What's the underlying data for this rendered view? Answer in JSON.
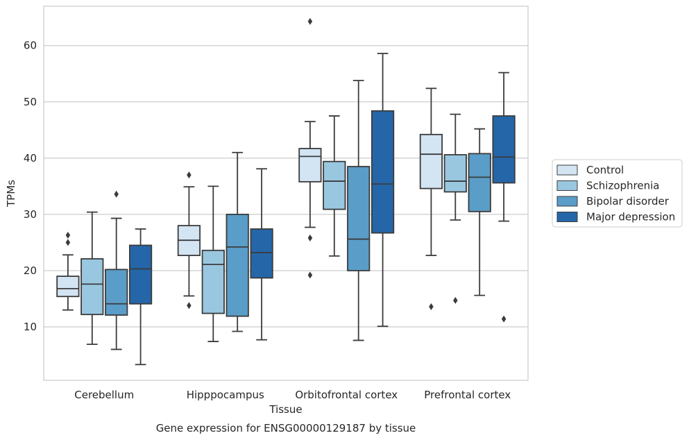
{
  "chart_data": {
    "type": "box",
    "caption": "Gene expression for ENSG00000129187 by tissue",
    "xlabel": "Tissue",
    "ylabel": "TPMs",
    "ylim": [
      0.5,
      67
    ],
    "yticks": [
      10,
      20,
      30,
      40,
      50,
      60
    ],
    "grid": "horizontal",
    "legend_position": "outside-right",
    "categories": [
      "Cerebellum",
      "Hipppocampus",
      "Orbitofrontal cortex",
      "Prefrontal cortex"
    ],
    "series": [
      {
        "name": "Control",
        "color": "#d3e4f3",
        "boxes": [
          {
            "whislo": 13.0,
            "q1": 15.4,
            "med": 16.8,
            "q3": 19.0,
            "whishi": 22.8,
            "fliers": [
              25.0,
              26.3
            ]
          },
          {
            "whislo": 15.5,
            "q1": 22.7,
            "med": 25.4,
            "q3": 28.0,
            "whishi": 34.9,
            "fliers": [
              13.8,
              37.0
            ]
          },
          {
            "whislo": 27.7,
            "q1": 35.8,
            "med": 40.3,
            "q3": 41.7,
            "whishi": 46.5,
            "fliers": [
              19.2,
              25.8,
              64.3
            ]
          },
          {
            "whislo": 22.7,
            "q1": 34.6,
            "med": 40.7,
            "q3": 44.2,
            "whishi": 52.4,
            "fliers": [
              13.6
            ]
          }
        ]
      },
      {
        "name": "Schizophrenia",
        "color": "#9ac7e0",
        "boxes": [
          {
            "whislo": 6.9,
            "q1": 12.2,
            "med": 17.6,
            "q3": 22.1,
            "whishi": 30.4,
            "fliers": []
          },
          {
            "whislo": 7.4,
            "q1": 12.4,
            "med": 21.1,
            "q3": 23.6,
            "whishi": 35.0,
            "fliers": []
          },
          {
            "whislo": 22.6,
            "q1": 30.9,
            "med": 35.9,
            "q3": 39.4,
            "whishi": 47.5,
            "fliers": []
          },
          {
            "whislo": 29.0,
            "q1": 34.0,
            "med": 35.9,
            "q3": 40.6,
            "whishi": 47.8,
            "fliers": [
              14.7
            ]
          }
        ]
      },
      {
        "name": "Bipolar disorder",
        "color": "#5a9dc8",
        "boxes": [
          {
            "whislo": 6.0,
            "q1": 12.1,
            "med": 14.1,
            "q3": 20.2,
            "whishi": 29.3,
            "fliers": [
              33.6
            ]
          },
          {
            "whislo": 9.2,
            "q1": 11.9,
            "med": 24.2,
            "q3": 30.0,
            "whishi": 41.0,
            "fliers": []
          },
          {
            "whislo": 7.6,
            "q1": 20.0,
            "med": 25.6,
            "q3": 38.5,
            "whishi": 53.8,
            "fliers": []
          },
          {
            "whislo": 15.6,
            "q1": 30.5,
            "med": 36.6,
            "q3": 40.8,
            "whishi": 45.2,
            "fliers": []
          }
        ]
      },
      {
        "name": "Major depression",
        "color": "#2566a9",
        "boxes": [
          {
            "whislo": 3.3,
            "q1": 14.1,
            "med": 20.3,
            "q3": 24.5,
            "whishi": 27.4,
            "fliers": []
          },
          {
            "whislo": 7.7,
            "q1": 18.7,
            "med": 23.2,
            "q3": 27.4,
            "whishi": 38.1,
            "fliers": []
          },
          {
            "whislo": 10.1,
            "q1": 26.7,
            "med": 35.4,
            "q3": 48.4,
            "whishi": 58.6,
            "fliers": []
          },
          {
            "whislo": 28.8,
            "q1": 35.6,
            "med": 40.2,
            "q3": 47.5,
            "whishi": 55.2,
            "fliers": [
              11.4
            ]
          }
        ]
      }
    ]
  }
}
